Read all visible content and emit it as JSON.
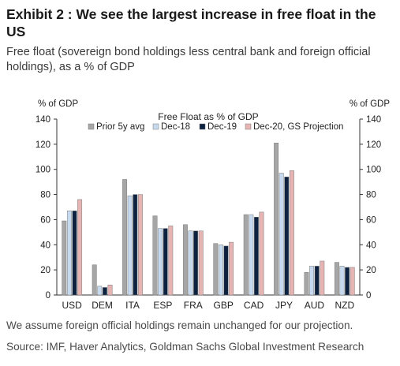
{
  "header": {
    "title": "Exhibit 2 : We see the largest increase in free float in the US",
    "subtitle": "Free float (sovereign bond holdings less central bank and foreign official holdings), as a % of GDP"
  },
  "footer": {
    "note": "We assume foreign official holdings remain unchanged for our projection.",
    "source": "Source: IMF, Haver Analytics, Goldman Sachs Global Investment Research"
  },
  "chart_data": {
    "type": "bar",
    "title": "Free Float as % of GDP",
    "ylabel_left": "% of GDP",
    "ylabel_right": "% of GDP",
    "ylim": [
      0,
      140
    ],
    "yticks": [
      0,
      20,
      40,
      60,
      80,
      100,
      120,
      140
    ],
    "grid": false,
    "legend_position": "top",
    "categories": [
      "USD",
      "DEM",
      "ITA",
      "ESP",
      "FRA",
      "GBP",
      "CAD",
      "JPY",
      "AUD",
      "NZD"
    ],
    "series": [
      {
        "name": "Prior 5y avg",
        "color": "#a6a6a6",
        "values": [
          59,
          24,
          92,
          63,
          56,
          41,
          64,
          121,
          18,
          26
        ]
      },
      {
        "name": "Dec-18",
        "color": "#c6d9ee",
        "values": [
          67,
          7,
          79,
          53,
          51,
          40,
          64,
          97,
          23,
          23
        ]
      },
      {
        "name": "Dec-19",
        "color": "#0d2240",
        "values": [
          67,
          6,
          80,
          53,
          51,
          39,
          62,
          94,
          23,
          22
        ]
      },
      {
        "name": "Dec-20, GS Projection",
        "color": "#e6b4b2",
        "values": [
          76,
          8,
          80,
          55,
          51,
          42,
          66,
          99,
          27,
          22
        ]
      }
    ]
  }
}
